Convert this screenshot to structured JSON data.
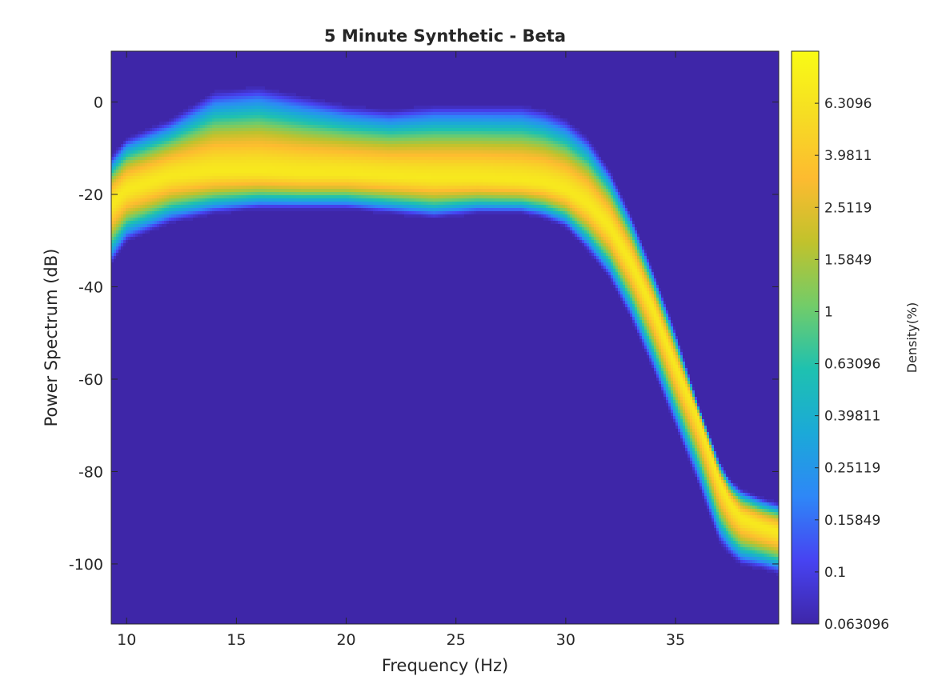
{
  "chart_data": {
    "type": "heatmap",
    "title": "5 Minute Synthetic - Beta",
    "xlabel": "Frequency (Hz)",
    "ylabel": "Power Spectrum (dB)",
    "xlim": [
      9.3,
      39.7
    ],
    "ylim": [
      -113,
      11
    ],
    "xticks": [
      10,
      15,
      20,
      25,
      30,
      35
    ],
    "yticks": [
      0,
      -20,
      -40,
      -60,
      -80,
      -100
    ],
    "colorbar": {
      "label": "Density(%)",
      "scale": "log",
      "range": [
        0.063096,
        10
      ],
      "ticks": [
        "0.063096",
        "0.1",
        "0.15849",
        "0.25119",
        "0.39811",
        "0.63096",
        "1",
        "1.5849",
        "2.5119",
        "3.9811",
        "6.3096"
      ],
      "colormap": [
        "#3e26a8",
        "#4743f2",
        "#2e87f7",
        "#1ba9d8",
        "#1ec1b0",
        "#72cc69",
        "#c1c22c",
        "#fdbb30",
        "#f6dd23",
        "#f9fb15"
      ]
    },
    "density_band": {
      "description_units": "frequency Hz vs dB",
      "frequency": [
        9.3,
        10,
        12,
        14,
        16,
        18,
        20,
        22,
        24,
        26,
        28,
        29,
        30,
        31,
        32,
        33,
        34,
        35,
        36,
        37,
        37.5,
        38,
        39,
        39.7
      ],
      "median_db": [
        -22,
        -19,
        -16,
        -15,
        -15,
        -15.5,
        -15.5,
        -16,
        -16.5,
        -16.5,
        -17,
        -17.5,
        -19,
        -22,
        -27,
        -35,
        -45,
        -57,
        -68,
        -82,
        -87,
        -90,
        -92,
        -93
      ],
      "upper_db": [
        -12,
        -8,
        -4,
        2,
        3,
        1,
        -1,
        -2,
        -1,
        -1,
        -1,
        -2,
        -4,
        -8,
        -15,
        -25,
        -37,
        -50,
        -65,
        -78,
        -82,
        -84,
        -86,
        -87
      ],
      "lower_db": [
        -35,
        -30,
        -26,
        -24,
        -23,
        -23,
        -23,
        -24,
        -25,
        -24,
        -24,
        -25,
        -27,
        -32,
        -38,
        -47,
        -58,
        -70,
        -82,
        -95,
        -98,
        -100,
        -101,
        -102
      ],
      "peak_density_percent": 10,
      "background_density_percent": 0.063096
    }
  }
}
